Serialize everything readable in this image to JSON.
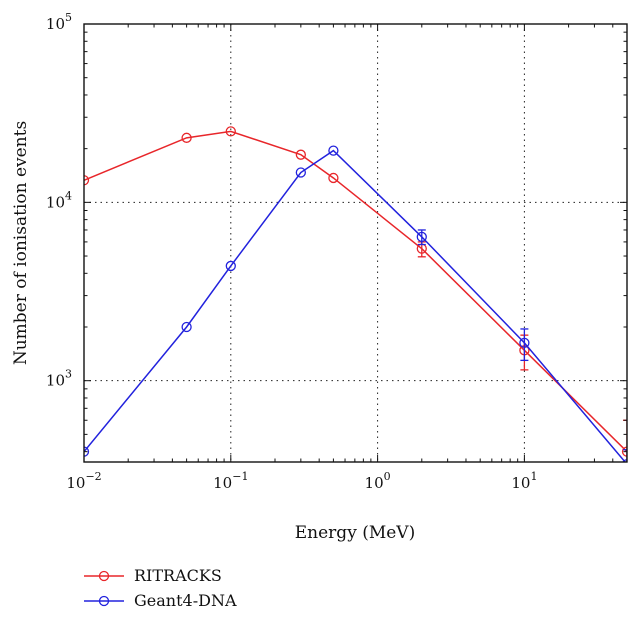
{
  "chart_data": {
    "type": "line",
    "xscale": "log",
    "yscale": "log",
    "xlim": [
      0.01,
      50
    ],
    "ylim": [
      350,
      100000
    ],
    "xlabel": "Energy (MeV)",
    "ylabel": "Number of ionisation events",
    "grid": true,
    "legend_position": "bottom-left",
    "x_ticks": [
      {
        "value": 0.01,
        "base": "10",
        "exp": "−2"
      },
      {
        "value": 0.1,
        "base": "10",
        "exp": "−1"
      },
      {
        "value": 1,
        "base": "10",
        "exp": "0"
      },
      {
        "value": 10,
        "base": "10",
        "exp": "1"
      }
    ],
    "y_ticks": [
      {
        "value": 1000,
        "base": "10",
        "exp": "3"
      },
      {
        "value": 10000,
        "base": "10",
        "exp": "4"
      },
      {
        "value": 100000,
        "base": "10",
        "exp": "5"
      }
    ],
    "series": [
      {
        "name": "RITRACKS",
        "color": "#e8262a",
        "x": [
          0.01,
          0.05,
          0.1,
          0.3,
          0.5,
          2,
          10,
          50
        ],
        "y": [
          13300,
          23000,
          25000,
          18500,
          13700,
          5500,
          1480,
          400
        ],
        "err_low": [
          null,
          null,
          null,
          null,
          null,
          4950,
          1150,
          330
        ],
        "err_high": [
          null,
          null,
          null,
          null,
          null,
          6000,
          1800,
          600
        ]
      },
      {
        "name": "Geant4-DNA",
        "color": "#2222dd",
        "x": [
          0.01,
          0.05,
          0.1,
          0.3,
          0.5,
          2,
          10,
          50
        ],
        "y": [
          400,
          2000,
          4400,
          14700,
          19500,
          6400,
          1630,
          340
        ],
        "err_low": [
          null,
          null,
          null,
          null,
          null,
          5800,
          1300,
          280
        ],
        "err_high": [
          null,
          null,
          null,
          null,
          null,
          7000,
          1950,
          410
        ]
      }
    ]
  }
}
